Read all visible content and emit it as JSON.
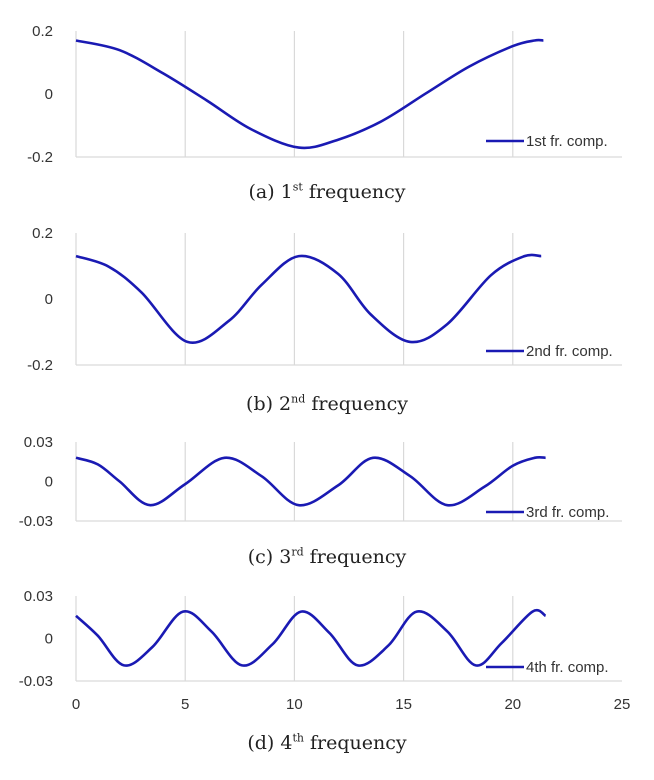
{
  "chart_data": [
    {
      "type": "line",
      "xlim": [
        0,
        25
      ],
      "ylim": [
        -0.2,
        0.2
      ],
      "yticks": [
        "0.2",
        "0",
        "-0.2"
      ],
      "ytick_values": [
        0.2,
        0,
        -0.2
      ],
      "grid": true,
      "legend_position": "bottom-right",
      "series": [
        {
          "name": "1st fr. comp.",
          "color": "#1a1ab3",
          "x": [
            0,
            2,
            4,
            6,
            8,
            10.2,
            12,
            14,
            16,
            18,
            20,
            21,
            21.4
          ],
          "y": [
            0.17,
            0.139,
            0.065,
            -0.021,
            -0.111,
            -0.17,
            -0.145,
            -0.086,
            0.001,
            0.087,
            0.152,
            0.17,
            0.17
          ]
        }
      ],
      "caption_prefix": "(a) 1",
      "caption_sup": "st",
      "caption_suffix": " frequency"
    },
    {
      "type": "line",
      "xlim": [
        0,
        25
      ],
      "ylim": [
        -0.2,
        0.2
      ],
      "yticks": [
        "0.2",
        "0",
        "-0.2"
      ],
      "ytick_values": [
        0.2,
        0,
        -0.2
      ],
      "grid": true,
      "legend_position": "bottom-right",
      "series": [
        {
          "name": "2nd fr. comp.",
          "color": "#1a1ab3",
          "x": [
            0,
            1.5,
            3,
            5.1,
            7,
            8.5,
            10.2,
            12,
            13.5,
            15.3,
            17,
            19,
            20.5,
            21.3
          ],
          "y": [
            0.13,
            0.098,
            0.02,
            -0.13,
            -0.066,
            0.043,
            0.13,
            0.076,
            -0.047,
            -0.13,
            -0.076,
            0.072,
            0.129,
            0.13
          ]
        }
      ],
      "caption_prefix": "(b) 2",
      "caption_sup": "nd",
      "caption_suffix": " frequency"
    },
    {
      "type": "line",
      "xlim": [
        0,
        25
      ],
      "ylim": [
        -0.03,
        0.03
      ],
      "yticks": [
        "0.03",
        "0",
        "-0.03"
      ],
      "ytick_values": [
        0.03,
        0,
        -0.03
      ],
      "grid": true,
      "legend_position": "bottom-right",
      "series": [
        {
          "name": "3rd fr. comp.",
          "color": "#1a1ab3",
          "x": [
            0,
            1,
            2,
            3.4,
            5,
            6.8,
            8.5,
            10.2,
            12,
            13.6,
            15.3,
            17,
            18.7,
            20,
            21,
            21.5
          ],
          "y": [
            0.018,
            0.013,
            0.0,
            -0.018,
            -0.002,
            0.018,
            0.004,
            -0.018,
            -0.003,
            0.018,
            0.004,
            -0.018,
            -0.004,
            0.012,
            0.018,
            0.018
          ]
        }
      ],
      "caption_prefix": "(c) 3",
      "caption_sup": "rd",
      "caption_suffix": " frequency"
    },
    {
      "type": "line",
      "xlim": [
        0,
        25
      ],
      "ylim": [
        -0.03,
        0.03
      ],
      "yticks": [
        "0.03",
        "0",
        "-0.03"
      ],
      "ytick_values": [
        0.03,
        0,
        -0.03
      ],
      "xticks": [
        "0",
        "5",
        "10",
        "15",
        "20",
        "25"
      ],
      "xtick_values": [
        0,
        5,
        10,
        15,
        20,
        25
      ],
      "grid": true,
      "legend_position": "bottom-right",
      "series": [
        {
          "name": "4th fr. comp.",
          "color": "#1a1ab3",
          "x": [
            0,
            1,
            2.2,
            3.5,
            4.9,
            6.2,
            7.6,
            9,
            10.3,
            11.6,
            12.9,
            14.3,
            15.6,
            17,
            18.3,
            19.5,
            20.9,
            21.5
          ],
          "y": [
            0.016,
            0.002,
            -0.019,
            -0.006,
            0.019,
            0.005,
            -0.019,
            -0.004,
            0.019,
            0.004,
            -0.019,
            -0.005,
            0.019,
            0.005,
            -0.019,
            -0.003,
            0.019,
            0.016
          ]
        }
      ],
      "caption_prefix": "(d) 4",
      "caption_sup": "th",
      "caption_suffix": " frequency"
    }
  ]
}
